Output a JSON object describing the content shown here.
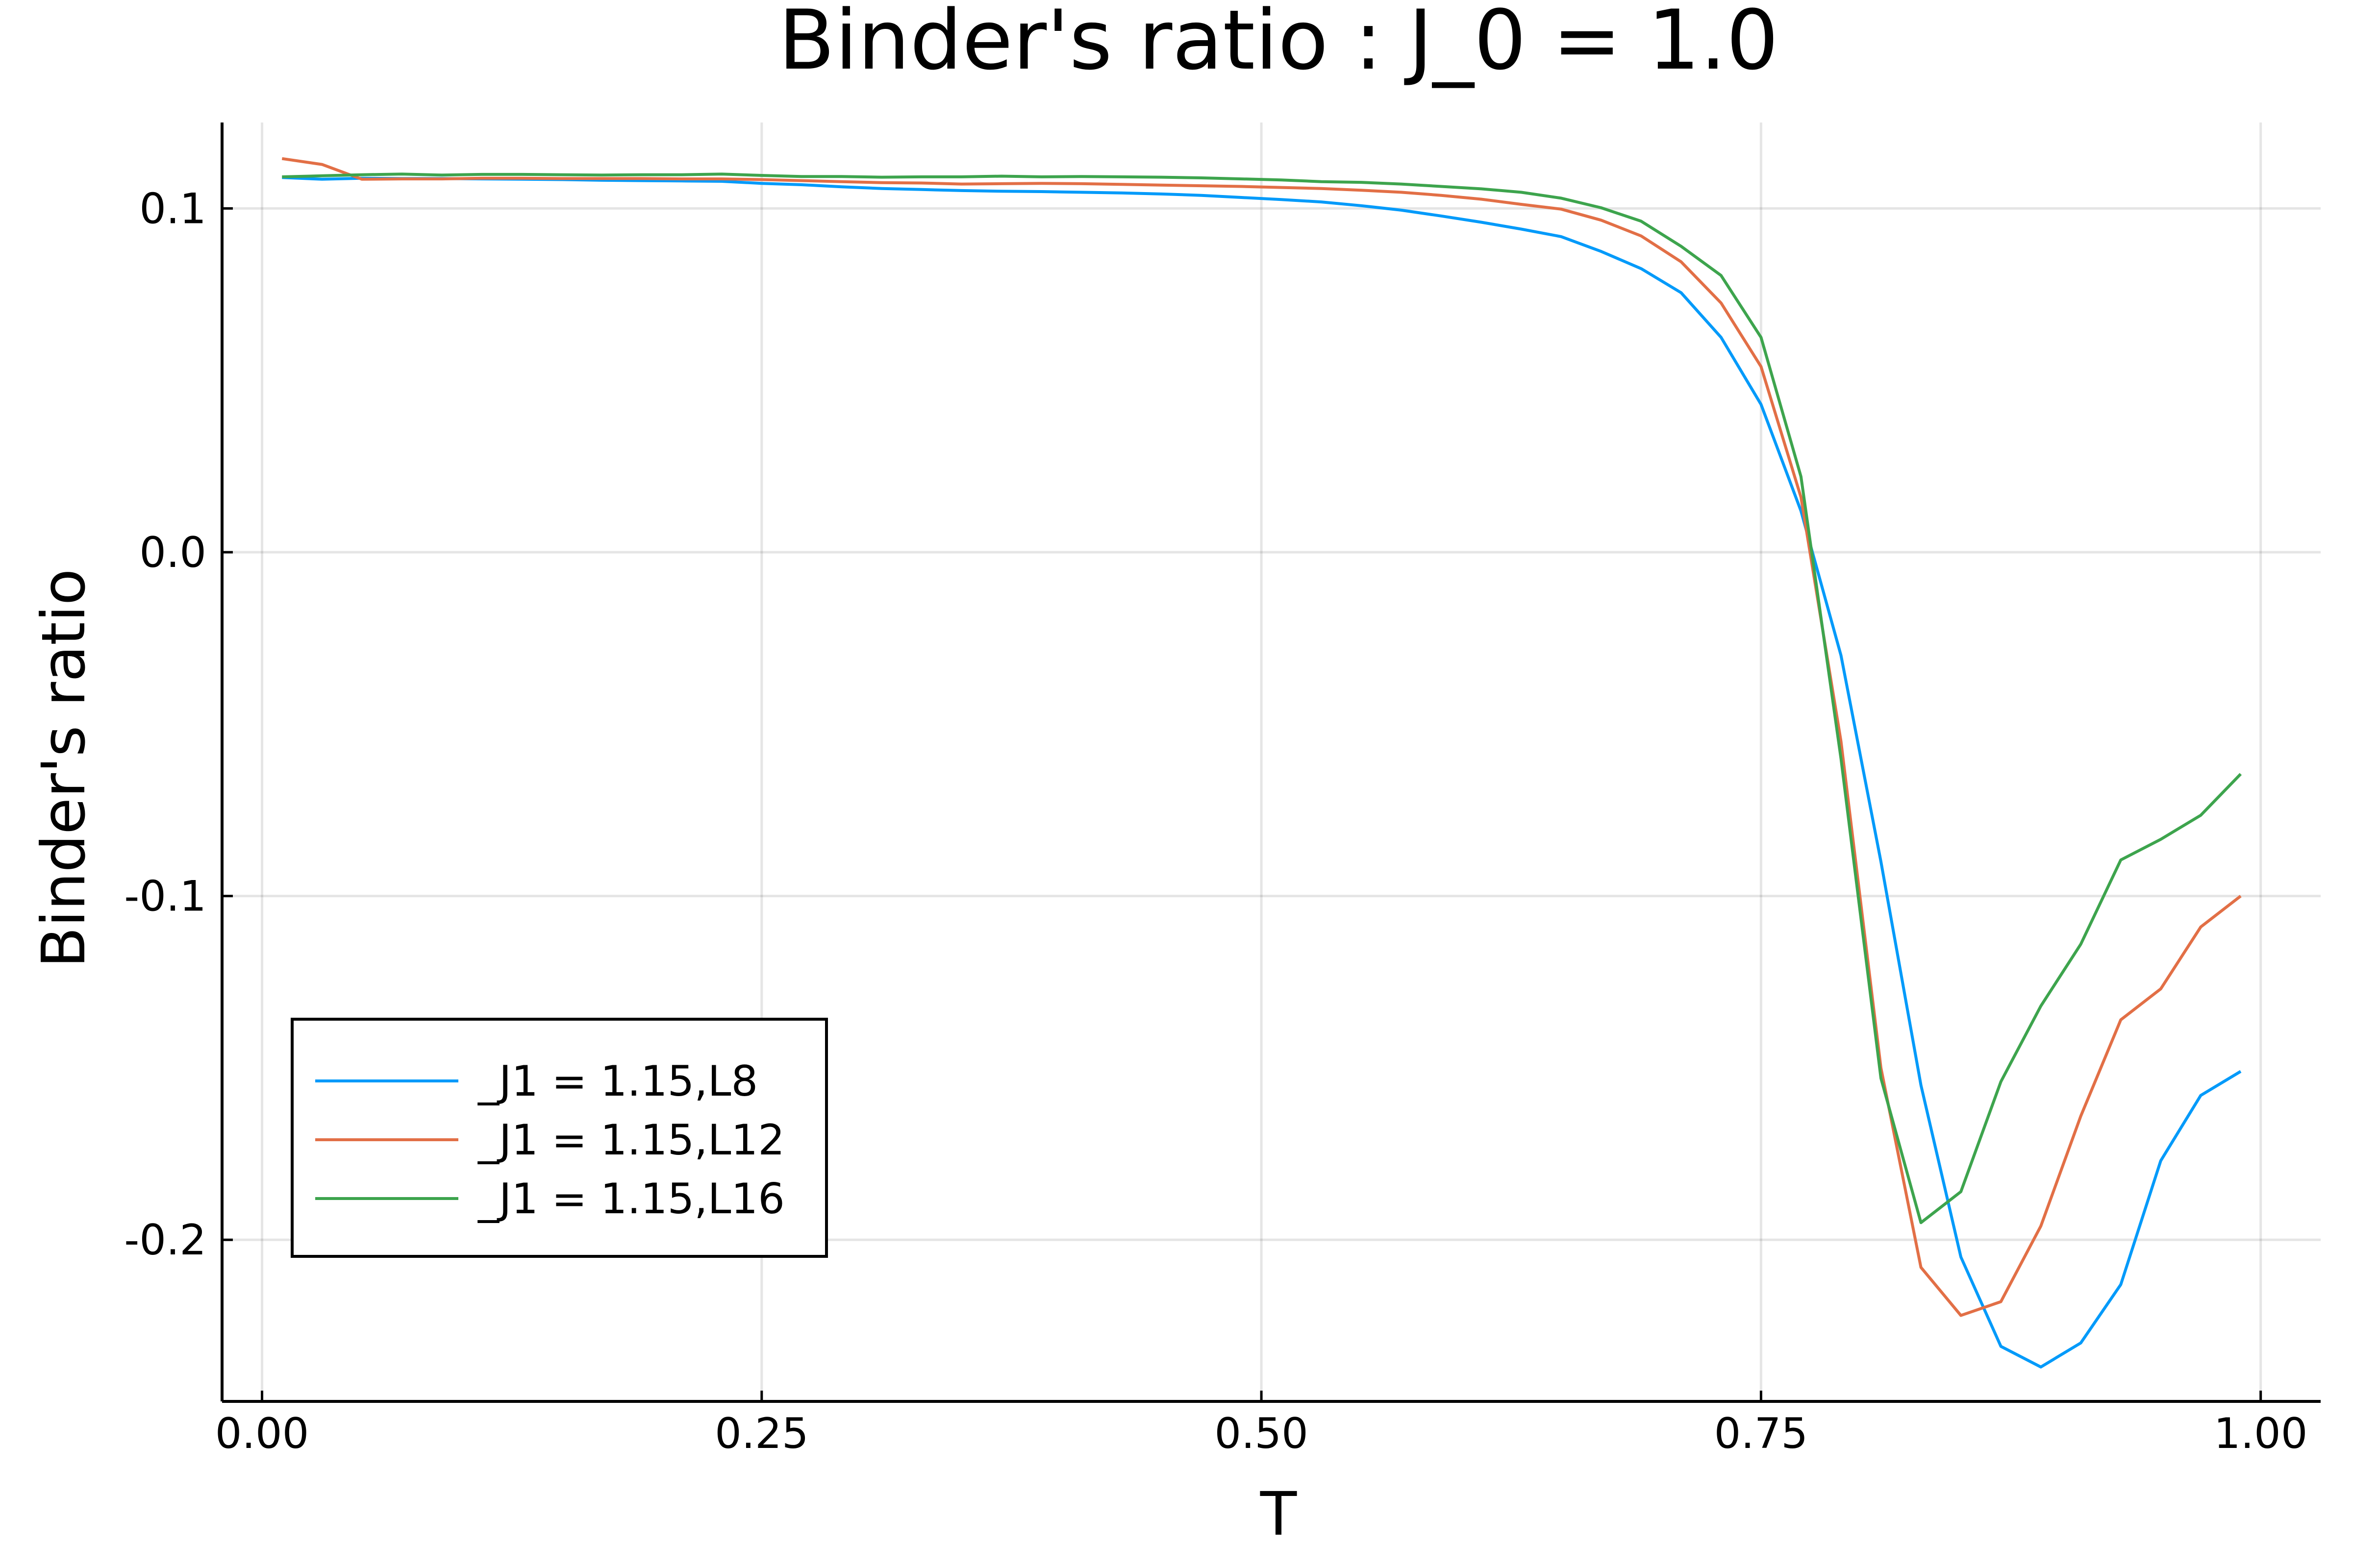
{
  "chart_data": {
    "type": "line",
    "title": "Binder's ratio : J_0 = 1.0",
    "xlabel": "T",
    "ylabel": "Binder's ratio",
    "xlim": [
      -0.02,
      1.03
    ],
    "ylim": [
      -0.247,
      0.125
    ],
    "xticks": [
      0.0,
      0.25,
      0.5,
      0.75,
      1.0
    ],
    "xtick_labels": [
      "0.00",
      "0.25",
      "0.50",
      "0.75",
      "1.00"
    ],
    "yticks": [
      0.1,
      0.0,
      -0.1,
      -0.2
    ],
    "ytick_labels": [
      "0.1",
      "0.0",
      "-0.1",
      "-0.2"
    ],
    "grid": true,
    "legend_position": "bottom-left",
    "x": [
      0.01,
      0.03,
      0.05,
      0.07,
      0.09,
      0.11,
      0.13,
      0.15,
      0.17,
      0.19,
      0.21,
      0.23,
      0.25,
      0.27,
      0.29,
      0.31,
      0.33,
      0.35,
      0.37,
      0.39,
      0.41,
      0.43,
      0.45,
      0.47,
      0.49,
      0.51,
      0.53,
      0.55,
      0.57,
      0.59,
      0.61,
      0.63,
      0.65,
      0.67,
      0.69,
      0.71,
      0.73,
      0.75,
      0.77,
      0.79,
      0.81,
      0.83,
      0.85,
      0.87,
      0.89,
      0.91,
      0.93,
      0.95,
      0.97,
      0.99
    ],
    "series": [
      {
        "name": "_J1 = 1.15,L8",
        "color": "#009AFA",
        "values": [
          0.109,
          0.1085,
          0.1088,
          0.1087,
          0.1087,
          0.1086,
          0.1085,
          0.1084,
          0.1082,
          0.1081,
          0.108,
          0.1079,
          0.1073,
          0.1069,
          0.1063,
          0.1058,
          0.1055,
          0.1052,
          0.105,
          0.1049,
          0.1047,
          0.1045,
          0.1042,
          0.1038,
          0.1032,
          0.1026,
          0.1019,
          0.1008,
          0.0995,
          0.0978,
          0.096,
          0.094,
          0.0918,
          0.0875,
          0.0825,
          0.0755,
          0.0625,
          0.043,
          0.012,
          -0.03,
          -0.09,
          -0.155,
          -0.205,
          -0.231,
          -0.237,
          -0.23,
          -0.213,
          -0.177,
          -0.158,
          -0.151
        ]
      },
      {
        "name": "_J1 = 1.15,L12",
        "color": "#E26F46",
        "values": [
          0.1145,
          0.1128,
          0.1085,
          0.1086,
          0.1086,
          0.1088,
          0.1088,
          0.1087,
          0.1087,
          0.1087,
          0.1086,
          0.1086,
          0.1084,
          0.1081,
          0.1078,
          0.1075,
          0.1074,
          0.1071,
          0.1072,
          0.1073,
          0.1072,
          0.107,
          0.1068,
          0.1066,
          0.1064,
          0.1061,
          0.1058,
          0.1053,
          0.1047,
          0.1038,
          0.1027,
          0.1012,
          0.0998,
          0.0966,
          0.092,
          0.0845,
          0.0725,
          0.054,
          0.016,
          -0.055,
          -0.15,
          -0.208,
          -0.222,
          -0.218,
          -0.196,
          -0.164,
          -0.136,
          -0.127,
          -0.109,
          -0.1
        ]
      },
      {
        "name": "_J1 = 1.15,L16",
        "color": "#3DA44D",
        "values": [
          0.1092,
          0.1095,
          0.1098,
          0.11,
          0.1097,
          0.1099,
          0.1099,
          0.1098,
          0.1097,
          0.1098,
          0.1098,
          0.11,
          0.1096,
          0.1093,
          0.1093,
          0.1091,
          0.1092,
          0.1092,
          0.1094,
          0.1092,
          0.1093,
          0.1092,
          0.1091,
          0.1089,
          0.1086,
          0.1083,
          0.1078,
          0.1076,
          0.1071,
          0.1064,
          0.1057,
          0.1047,
          0.103,
          0.1002,
          0.0963,
          0.089,
          0.0805,
          0.0625,
          0.022,
          -0.06,
          -0.153,
          -0.195,
          -0.186,
          -0.154,
          -0.132,
          -0.114,
          -0.0895,
          -0.0835,
          -0.0765,
          -0.0645
        ]
      }
    ]
  }
}
